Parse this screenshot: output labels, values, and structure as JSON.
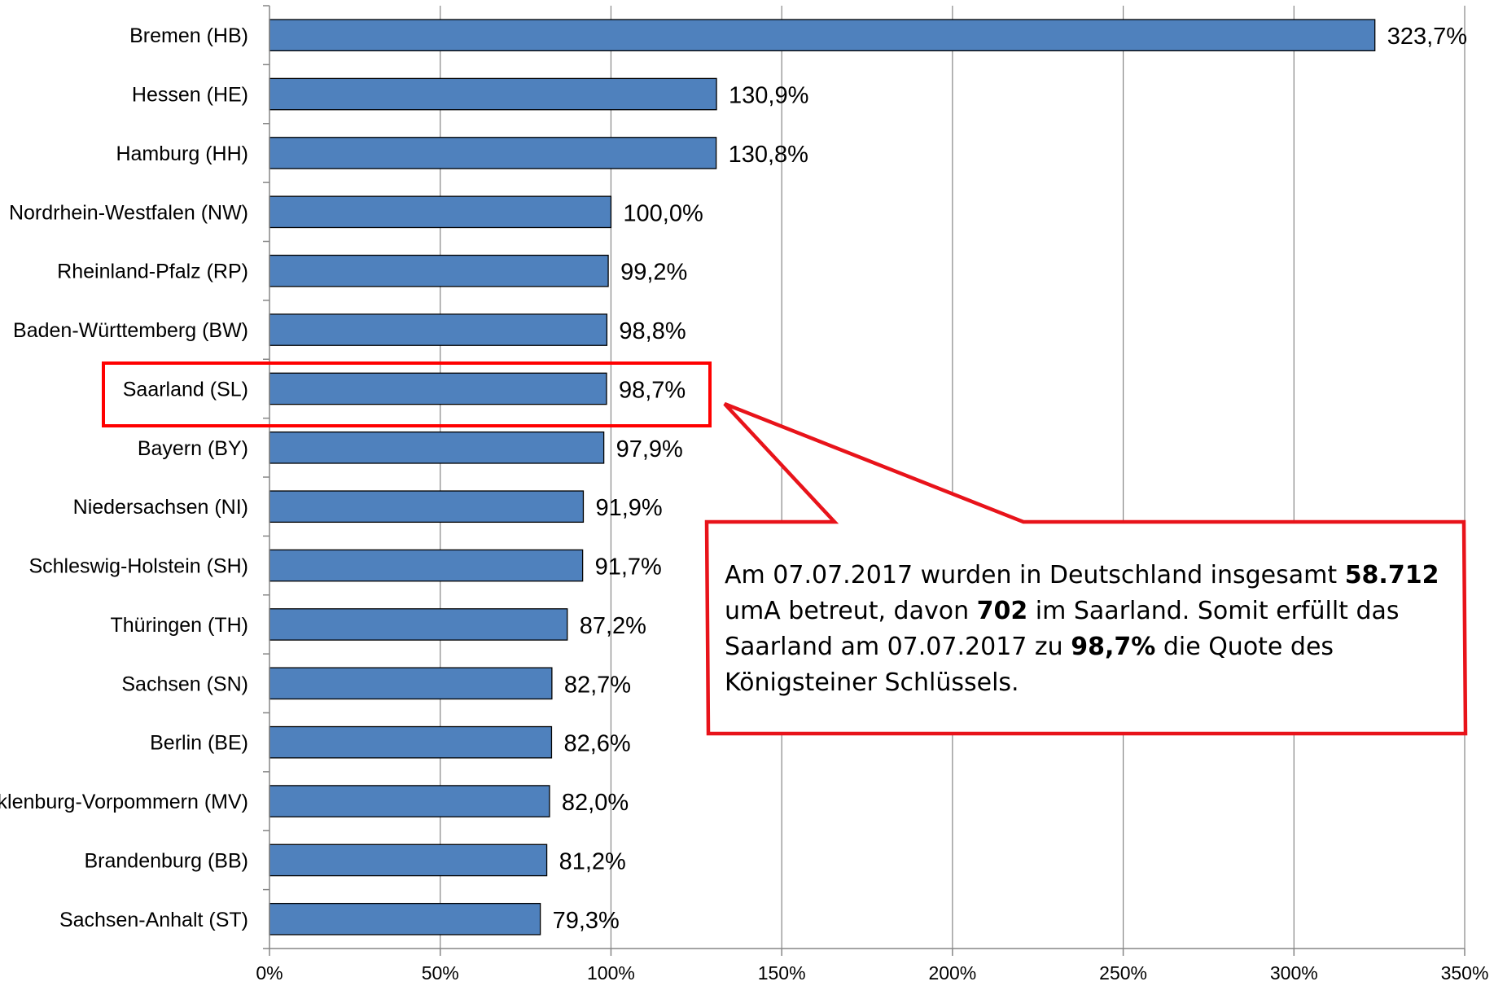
{
  "chart_data": {
    "type": "bar",
    "orientation": "horizontal",
    "categories": [
      "Bremen (HB)",
      "Hessen (HE)",
      "Hamburg (HH)",
      "Nordrhein-Westfalen (NW)",
      "Rheinland-Pfalz (RP)",
      "Baden-Württemberg (BW)",
      "Saarland (SL)",
      "Bayern (BY)",
      "Niedersachsen (NI)",
      "Schleswig-Holstein (SH)",
      "Thüringen (TH)",
      "Sachsen (SN)",
      "Berlin (BE)",
      "Mecklenburg-Vorpommern (MV)",
      "Brandenburg (BB)",
      "Sachsen-Anhalt (ST)"
    ],
    "values": [
      323.7,
      130.9,
      130.8,
      100.0,
      99.2,
      98.8,
      98.7,
      97.9,
      91.9,
      91.7,
      87.2,
      82.7,
      82.6,
      82.0,
      81.2,
      79.3
    ],
    "value_labels": [
      "323,7%",
      "130,9%",
      "130,8%",
      "100,0%",
      "99,2%",
      "98,8%",
      "98,7%",
      "97,9%",
      "91,9%",
      "91,7%",
      "87,2%",
      "82,7%",
      "82,6%",
      "82,0%",
      "81,2%",
      "79,3%"
    ],
    "xlim": [
      0,
      350
    ],
    "xticks": [
      0,
      50,
      100,
      150,
      200,
      250,
      300,
      350
    ],
    "xtick_labels": [
      "0%",
      "50%",
      "100%",
      "150%",
      "200%",
      "250%",
      "300%",
      "350%"
    ],
    "grid": "vertical",
    "bar_color": "#4f81bd",
    "highlighted_category": "Saarland (SL)",
    "highlight_color": "#ff0000"
  },
  "callout": {
    "border_color": "#e8131a",
    "segments": [
      {
        "text": "Am 07.07.2017 wurden in Deutschland insgesamt ",
        "bold": false
      },
      {
        "text": "58.712",
        "bold": true
      },
      {
        "text": " umA betreut, davon ",
        "bold": false
      },
      {
        "text": "702",
        "bold": true
      },
      {
        "text": " im Saarland. Somit erfüllt das Saarland am 07.07.2017 zu ",
        "bold": false
      },
      {
        "text": "98,7%",
        "bold": true
      },
      {
        "text": " die Quote des Königsteiner Schlüssels.",
        "bold": false
      }
    ]
  }
}
